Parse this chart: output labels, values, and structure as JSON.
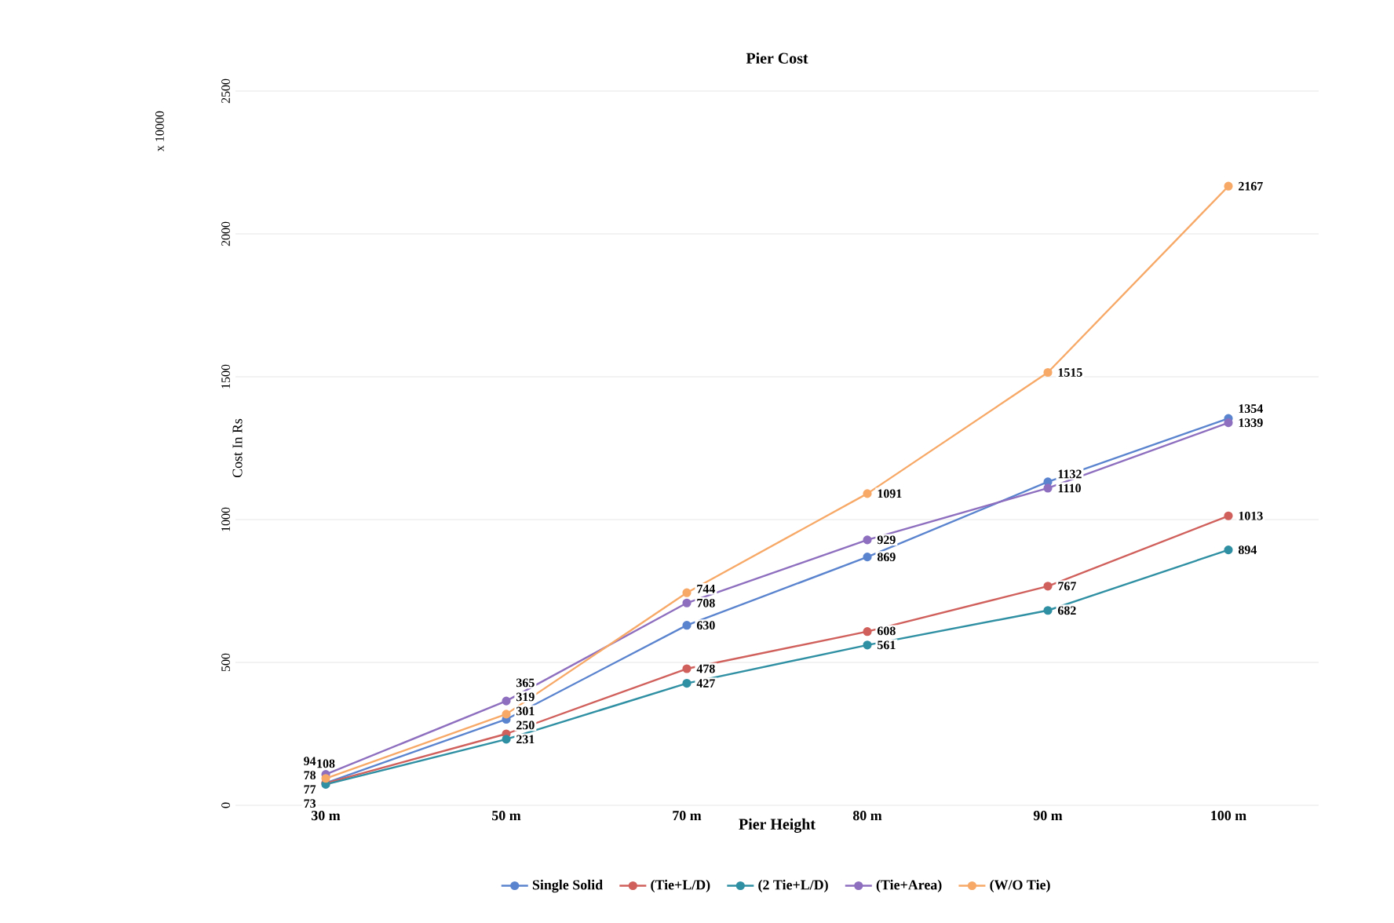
{
  "chart_data": {
    "type": "line",
    "title": "Pier Cost",
    "xlabel": "Pier Height",
    "ylabel": "Cost In Rs",
    "annotations": [
      "x 10000"
    ],
    "categories": [
      "30 m",
      "50 m",
      "70 m",
      "80 m",
      "90 m",
      "100 m"
    ],
    "series": [
      {
        "name": "Single Solid",
        "color": "#5b84cf",
        "values": [
          78,
          301,
          630,
          869,
          1132,
          1354
        ]
      },
      {
        "name": "(Tie+L/D)",
        "color": "#d0605c",
        "values": [
          77,
          250,
          478,
          608,
          767,
          1013
        ]
      },
      {
        "name": "(2 Tie+L/D)",
        "color": "#2f8fa3",
        "values": [
          73,
          231,
          427,
          561,
          682,
          894
        ]
      },
      {
        "name": "(Tie+Area)",
        "color": "#8e6fbf",
        "values": [
          108,
          365,
          708,
          929,
          1110,
          1339
        ]
      },
      {
        "name": "(W/O Tie)",
        "color": "#f7a968",
        "values": [
          94,
          319,
          744,
          1091,
          1515,
          2167
        ]
      }
    ],
    "ylim": [
      0,
      2500
    ],
    "yticks": [
      0,
      500,
      1000,
      1500,
      2000,
      2500
    ],
    "grid": "y",
    "legend": "bottom",
    "marker": "circle",
    "line_style": "solid",
    "data_labels": true
  }
}
